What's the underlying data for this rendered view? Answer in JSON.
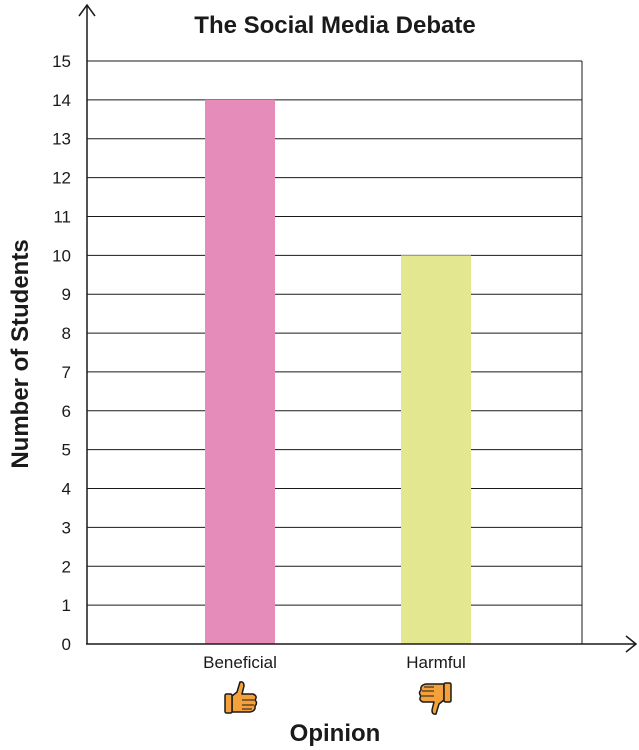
{
  "chart_data": {
    "type": "bar",
    "title": "The Social Media Debate",
    "xlabel": "Opinion",
    "ylabel": "Number of Students",
    "categories": [
      "Beneficial",
      "Harmful"
    ],
    "values": [
      14,
      10
    ],
    "colors": [
      "#e58cba",
      "#e3e890"
    ],
    "category_icons": [
      "thumbs-up-icon",
      "thumbs-down-icon"
    ],
    "ylim": [
      0,
      15
    ],
    "yticks": [
      "0",
      "1",
      "2",
      "3",
      "4",
      "5",
      "6",
      "7",
      "8",
      "9",
      "10",
      "11",
      "12",
      "13",
      "14",
      "15"
    ],
    "grid": true
  }
}
